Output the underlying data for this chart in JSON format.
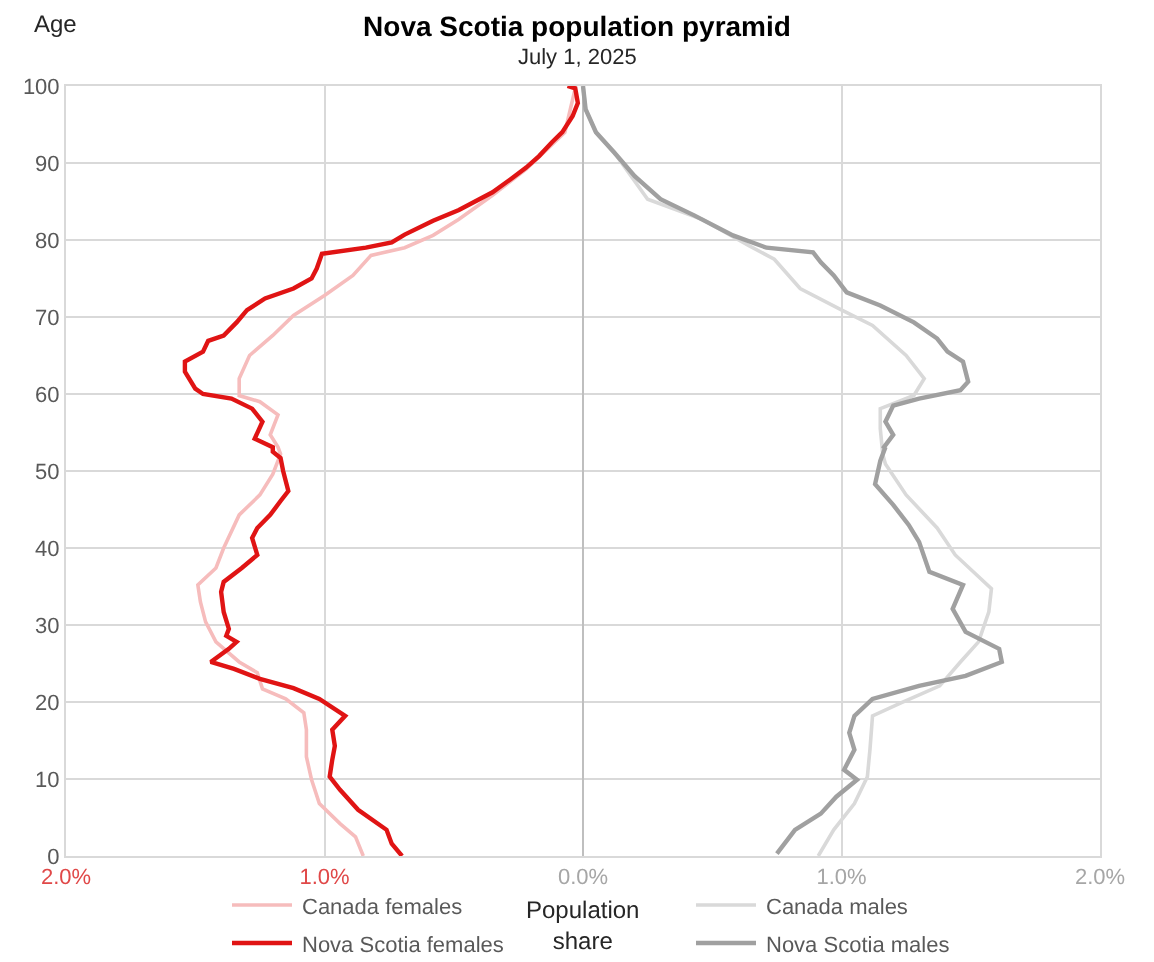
{
  "chart_data": {
    "type": "line",
    "title": "Nova Scotia population pyramid",
    "subtitle": "July 1, 2025",
    "xlabel": "Population\nshare",
    "ylabel": "Age",
    "series": [
      {
        "name": "Canada females",
        "color": "#f6bcbc",
        "x": [
          -0.85,
          -0.88,
          -0.94,
          -1.02,
          -1.05,
          -1.07,
          -1.07,
          -1.08,
          -1.15,
          -1.24,
          -1.26,
          -1.33,
          -1.42,
          -1.46,
          -1.48,
          -1.49,
          -1.42,
          -1.39,
          -1.33,
          -1.25,
          -1.2,
          -1.17,
          -1.18,
          -1.21,
          -1.18,
          -1.25,
          -1.33,
          -1.33,
          -1.29,
          -1.2,
          -1.12,
          -1.0,
          -0.89,
          -0.82,
          -0.69,
          -0.58,
          -0.48,
          -0.35,
          -0.22,
          -0.07,
          -0.03
        ],
        "values": [
          0,
          2.5,
          4.2,
          6.8,
          9.9,
          12.9,
          16.4,
          18.6,
          20.4,
          21.7,
          23.8,
          25.2,
          27.8,
          30.4,
          33.0,
          35.2,
          37.4,
          40.0,
          44.3,
          46.9,
          49.6,
          52.2,
          53.1,
          54.7,
          57.3,
          59.0,
          59.8,
          62.0,
          65.0,
          67.6,
          70.2,
          72.8,
          75.4,
          78.0,
          79.0,
          80.6,
          82.7,
          85.8,
          89.2,
          94.0,
          99.7
        ]
      },
      {
        "name": "Nova Scotia females",
        "color": "#e01414",
        "x": [
          -0.7,
          -0.74,
          -0.76,
          -0.87,
          -0.94,
          -0.98,
          -0.97,
          -0.96,
          -0.97,
          -0.92,
          -1.02,
          -1.12,
          -1.25,
          -1.35,
          -1.44,
          -1.37,
          -1.34,
          -1.38,
          -1.37,
          -1.39,
          -1.4,
          -1.39,
          -1.32,
          -1.26,
          -1.28,
          -1.26,
          -1.21,
          -1.17,
          -1.14,
          -1.16,
          -1.17,
          -1.2,
          -1.2,
          -1.27,
          -1.24,
          -1.28,
          -1.36,
          -1.47,
          -1.5,
          -1.54,
          -1.54,
          -1.47,
          -1.45,
          -1.39,
          -1.34,
          -1.3,
          -1.23,
          -1.12,
          -1.05,
          -1.03,
          -1.01,
          -0.84,
          -0.74,
          -0.69,
          -0.58,
          -0.48,
          -0.35,
          -0.28,
          -0.22,
          -0.17,
          -0.12,
          -0.08,
          -0.04,
          -0.02,
          -0.03,
          -0.06
        ],
        "values": [
          0,
          1.6,
          3.4,
          6.0,
          8.6,
          10.3,
          12.5,
          14.3,
          16.4,
          18.2,
          20.4,
          21.8,
          23.0,
          24.3,
          25.2,
          26.9,
          27.8,
          28.6,
          29.5,
          31.7,
          34.3,
          35.6,
          37.4,
          39.1,
          41.3,
          42.6,
          44.3,
          46.1,
          47.4,
          50.0,
          51.7,
          52.5,
          53.1,
          54.2,
          56.4,
          58.1,
          59.4,
          60.0,
          60.7,
          62.9,
          64.2,
          65.5,
          66.9,
          67.6,
          69.3,
          70.9,
          72.4,
          73.7,
          75.0,
          76.3,
          78.2,
          79.0,
          79.7,
          80.7,
          82.5,
          83.9,
          86.2,
          87.9,
          89.4,
          90.9,
          92.7,
          94.0,
          96.1,
          97.8,
          99.7,
          100
        ]
      },
      {
        "name": "Canada males",
        "color": "#d9d9d9",
        "x": [
          0.91,
          0.97,
          1.05,
          1.1,
          1.11,
          1.12,
          1.23,
          1.38,
          1.46,
          1.53,
          1.57,
          1.58,
          1.44,
          1.37,
          1.25,
          1.17,
          1.16,
          1.15,
          1.15,
          1.28,
          1.32,
          1.25,
          1.12,
          0.99,
          0.84,
          0.74,
          0.64,
          0.46,
          0.25,
          0.12,
          0.05,
          0.01,
          0.0
        ],
        "values": [
          0,
          3.4,
          6.8,
          10.3,
          13.8,
          18.2,
          19.9,
          22.1,
          25.2,
          27.8,
          31.7,
          34.7,
          39.1,
          42.6,
          46.9,
          50.9,
          52.1,
          55.5,
          58.1,
          59.8,
          62.0,
          65.0,
          68.9,
          71.1,
          73.7,
          77.5,
          79.3,
          82.7,
          85.3,
          91.4,
          94.0,
          97.0,
          100
        ]
      },
      {
        "name": "Nova Scotia males",
        "color": "#a0a0a0",
        "x": [
          0.75,
          0.82,
          0.92,
          0.98,
          1.06,
          1.01,
          1.05,
          1.03,
          1.05,
          1.12,
          1.3,
          1.48,
          1.62,
          1.61,
          1.48,
          1.43,
          1.47,
          1.34,
          1.3,
          1.26,
          1.2,
          1.13,
          1.15,
          1.17,
          1.16,
          1.2,
          1.17,
          1.2,
          1.3,
          1.46,
          1.49,
          1.47,
          1.41,
          1.37,
          1.28,
          1.15,
          1.02,
          0.97,
          0.92,
          0.89,
          0.71,
          0.58,
          0.43,
          0.3,
          0.2,
          0.12,
          0.05,
          0.01,
          0.0
        ],
        "values": [
          0.3,
          3.4,
          5.5,
          7.7,
          9.9,
          11.2,
          13.8,
          16.0,
          18.2,
          20.4,
          22.1,
          23.4,
          25.2,
          26.9,
          29.1,
          32.1,
          35.2,
          36.9,
          40.8,
          43.0,
          45.6,
          48.3,
          51.3,
          53.1,
          52.9,
          54.7,
          56.4,
          58.5,
          59.4,
          60.5,
          61.6,
          64.2,
          65.5,
          67.2,
          69.3,
          71.5,
          73.2,
          75.4,
          77.1,
          78.4,
          79.0,
          80.6,
          83.2,
          85.3,
          88.3,
          91.4,
          94.0,
          97.0,
          100
        ]
      }
    ],
    "xlim": [
      -2,
      2
    ],
    "xticks": [
      {
        "value": -2,
        "label": "2.0%"
      },
      {
        "value": -1,
        "label": "1.0%"
      },
      {
        "value": 0,
        "label": "0.0%"
      },
      {
        "value": 1,
        "label": "1.0%"
      },
      {
        "value": 2,
        "label": "2.0%"
      }
    ],
    "ylim": [
      0,
      100
    ],
    "yticks": [
      0,
      10,
      20,
      30,
      40,
      50,
      60,
      70,
      80,
      90,
      100
    ],
    "grid": true,
    "legend": "bottom"
  }
}
